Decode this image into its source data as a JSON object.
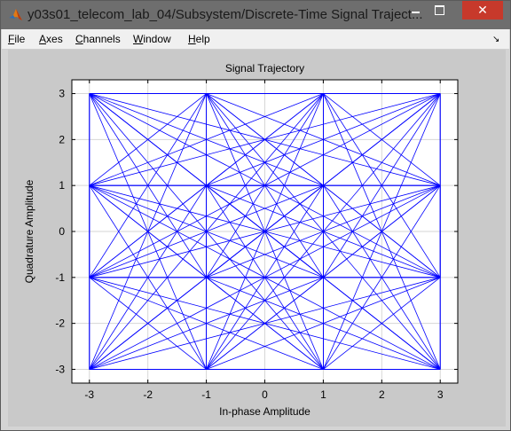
{
  "window": {
    "title": "y03s01_telecom_lab_04/Subsystem/Discrete-Time Signal Traject...",
    "close_glyph": "✕"
  },
  "menu": [
    {
      "label": "File",
      "underline": "F",
      "rest": "ile"
    },
    {
      "label": "Axes",
      "underline": "A",
      "rest": "xes"
    },
    {
      "label": "Channels",
      "underline": "C",
      "rest": "hannels"
    },
    {
      "label": "Window",
      "underline": "W",
      "rest": "indow"
    },
    {
      "label": "Help",
      "underline": "H",
      "rest": "elp"
    }
  ],
  "chart_data": {
    "type": "line",
    "title": "Signal Trajectory",
    "xlabel": "In-phase Amplitude",
    "ylabel": "Quadrature Amplitude",
    "xlim": [
      -3.3,
      3.3
    ],
    "ylim": [
      -3.3,
      3.3
    ],
    "xticks": [
      -3,
      -2,
      -1,
      0,
      1,
      2,
      3
    ],
    "yticks": [
      -3,
      -2,
      -1,
      0,
      1,
      2,
      3
    ],
    "grid": true,
    "line_color": "#0000ff",
    "constellation_levels": [
      -3,
      -1,
      1,
      3
    ],
    "description_trajectory": "all pairwise transitions between 16-QAM constellation points"
  }
}
